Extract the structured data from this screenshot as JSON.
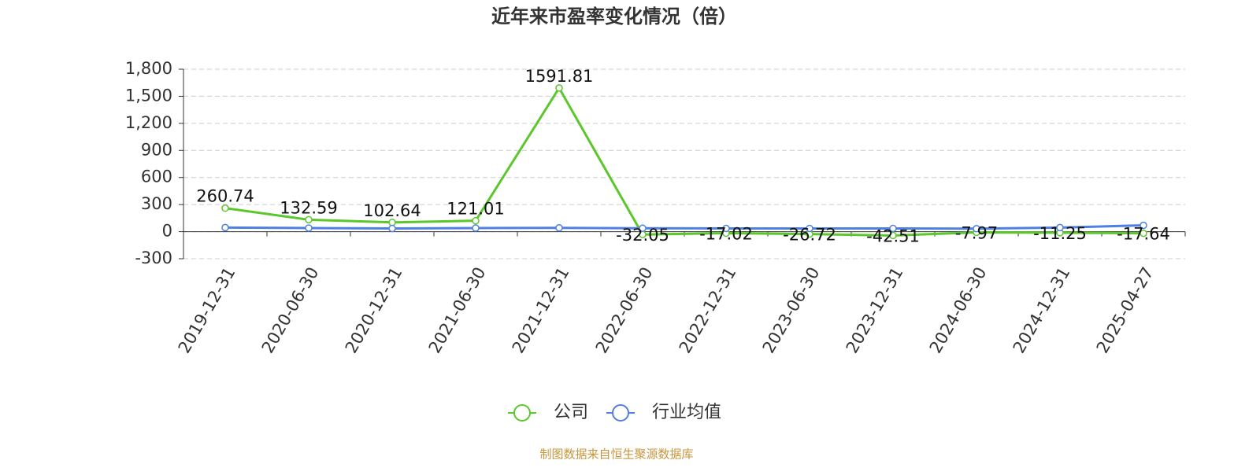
{
  "chart_data": {
    "type": "line",
    "title": "近年来市盈率变化情况（倍）",
    "categories": [
      "2019-12-31",
      "2020-06-30",
      "2020-12-31",
      "2021-06-30",
      "2021-12-31",
      "2022-06-30",
      "2022-12-31",
      "2023-06-30",
      "2023-12-31",
      "2024-06-30",
      "2024-12-31",
      "2025-04-27"
    ],
    "series": [
      {
        "name": "公司",
        "color": "#5bc72a",
        "values": [
          260.74,
          132.59,
          102.64,
          121.01,
          1591.81,
          -32.05,
          -17.02,
          -26.72,
          -42.51,
          -7.97,
          -11.25,
          -17.64
        ],
        "show_labels": true
      },
      {
        "name": "行业均值",
        "color": "#4f80e1",
        "values": [
          45,
          40,
          35,
          40,
          42,
          38,
          36,
          36,
          36,
          33,
          45,
          70
        ],
        "show_labels": false
      }
    ],
    "ylim": [
      -300,
      1800
    ],
    "yticks": [
      -300,
      0,
      300,
      600,
      900,
      {
        "value": 1200,
        "label": "1,200"
      },
      {
        "value": 1500,
        "label": "1,500"
      },
      {
        "value": 1800,
        "label": "1,800"
      }
    ],
    "grid": true,
    "source": "制图数据来自恒生聚源数据库"
  }
}
